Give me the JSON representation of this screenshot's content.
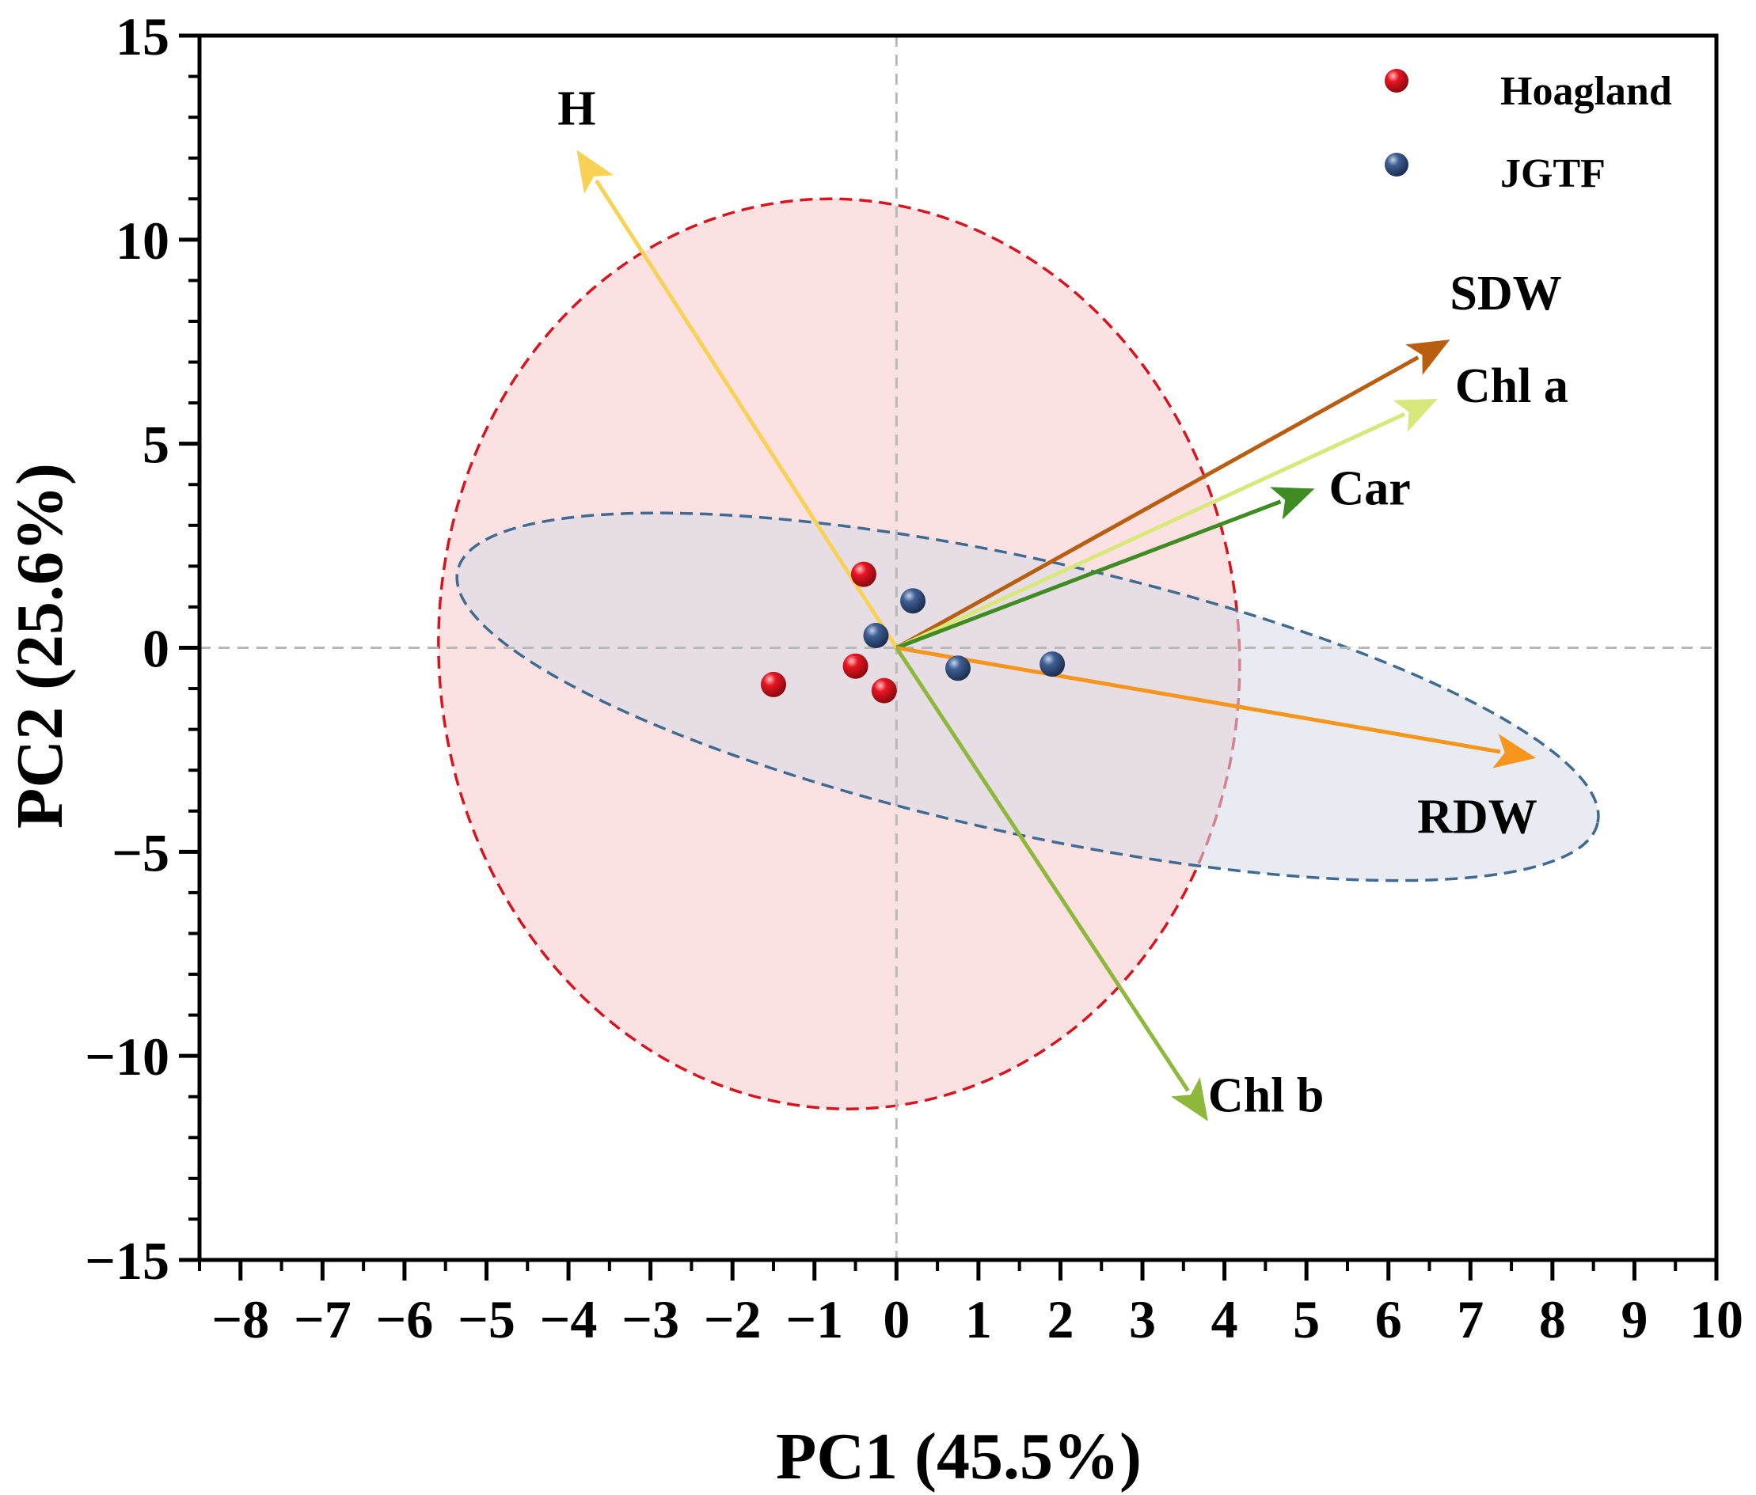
{
  "chart_data": {
    "type": "scatter",
    "subtype": "pca-biplot",
    "xlabel": "PC1 (45.5%)",
    "ylabel": "PC2 (25.6%)",
    "xlim": [
      -8.5,
      10
    ],
    "ylim": [
      -15,
      15
    ],
    "x_major_ticks": [
      -8,
      -7,
      -6,
      -5,
      -4,
      -3,
      -2,
      -1,
      0,
      1,
      2,
      3,
      4,
      5,
      6,
      7,
      8,
      9,
      10
    ],
    "x_tick_labels": [
      "−8",
      "−7",
      "−6",
      "−5",
      "−4",
      "−3",
      "−2",
      "−1",
      "0",
      "1",
      "2",
      "3",
      "4",
      "5",
      "6",
      "7",
      "8",
      "9",
      "10"
    ],
    "y_major_ticks": [
      -15,
      -10,
      -5,
      0,
      5,
      10,
      15
    ],
    "y_tick_labels": [
      "−15",
      "−10",
      "−5",
      "0",
      "5",
      "10",
      "15"
    ],
    "reference_lines": {
      "x": 0,
      "y": 0,
      "style": "dashed"
    },
    "series": [
      {
        "name": "Hoagland",
        "color": "#e01020",
        "points": [
          [
            -0.4,
            1.8
          ],
          [
            -0.5,
            -0.45
          ],
          [
            -0.15,
            -1.05
          ],
          [
            -1.5,
            -0.9
          ]
        ],
        "ellipse": {
          "center": [
            -0.7,
            -0.15
          ],
          "semi_axes": [
            4.88,
            11.16
          ],
          "angle_deg": 5,
          "fill": "#f9c9cc",
          "stroke": "#d8141e"
        }
      },
      {
        "name": "JGTF",
        "color": "#3a5a8c",
        "points": [
          [
            0.2,
            1.15
          ],
          [
            -0.25,
            0.3
          ],
          [
            0.75,
            -0.5
          ],
          [
            1.9,
            -0.4
          ]
        ],
        "ellipse": {
          "center": [
            1.6,
            -1.2
          ],
          "semi_axes": [
            7.12,
            3.35
          ],
          "angle_deg": -12.5,
          "fill": "#d5dce8",
          "stroke": "#3f6a92"
        }
      }
    ],
    "loadings": [
      {
        "name": "H",
        "x": -3.9,
        "y": 12.2,
        "color": "#f8d257"
      },
      {
        "name": "SDW",
        "x": 6.75,
        "y": 7.55,
        "color": "#b85e10"
      },
      {
        "name": "Chl a",
        "x": 6.6,
        "y": 6.1,
        "color": "#d9e87a"
      },
      {
        "name": "Car",
        "x": 5.1,
        "y": 3.9,
        "color": "#3f8c22"
      },
      {
        "name": "RDW",
        "x": 7.8,
        "y": -2.7,
        "color": "#f7951c"
      },
      {
        "name": "Chl b",
        "x": 3.8,
        "y": -11.6,
        "color": "#8eb83c"
      }
    ],
    "legend": {
      "placement": "top-right",
      "entries": [
        "Hoagland",
        "JGTF"
      ]
    }
  }
}
